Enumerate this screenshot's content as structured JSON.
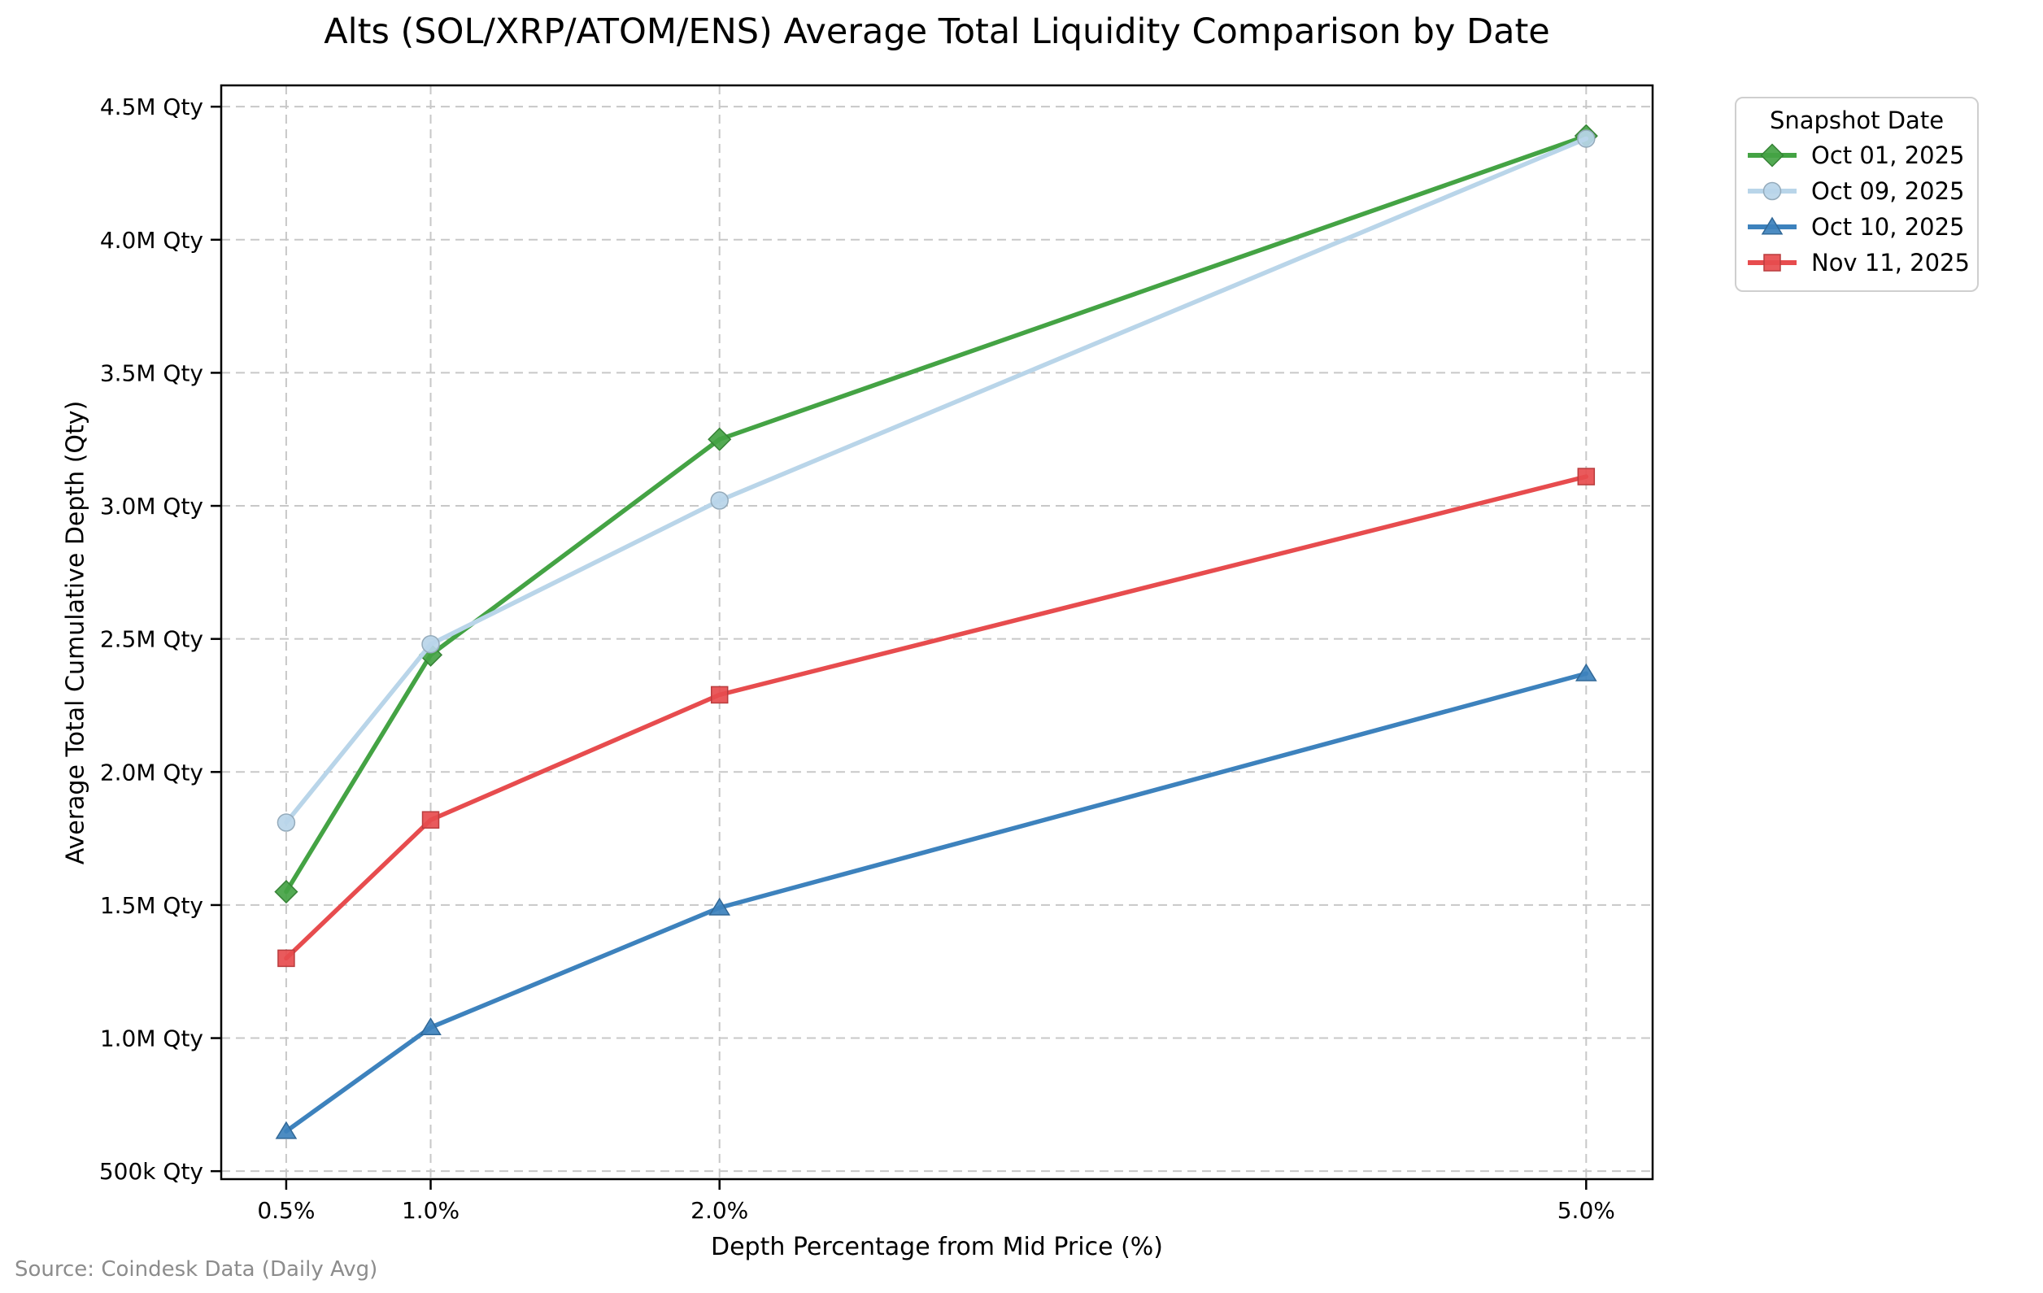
{
  "page": {
    "source_note": "Source: Coindesk Data (Daily Avg)"
  },
  "chart_data": {
    "type": "line",
    "title": "Alts (SOL/XRP/ATOM/ENS) Average Total Liquidity Comparison by Date",
    "xlabel": "Depth Percentage from Mid Price (%)",
    "ylabel": "Average Total Cumulative Depth (Qty)",
    "legend_title": "Snapshot Date",
    "legend_position": "upper right, outside plot area",
    "grid": true,
    "x": [
      0.5,
      1.0,
      2.0,
      5.0
    ],
    "x_tick_labels": [
      "0.5%",
      "1.0%",
      "2.0%",
      "5.0%"
    ],
    "xlim": [
      0.275,
      5.23
    ],
    "y_ticks": [
      500000,
      1000000,
      1500000,
      2000000,
      2500000,
      3000000,
      3500000,
      4000000,
      4500000
    ],
    "y_tick_labels": [
      "500k Qty",
      "1.0M Qty",
      "1.5M Qty",
      "2.0M Qty",
      "2.5M Qty",
      "3.0M Qty",
      "3.5M Qty",
      "4.0M Qty",
      "4.5M Qty"
    ],
    "ylim": [
      470000,
      4580000
    ],
    "series": [
      {
        "name": "Oct 01, 2025",
        "color": "#44a344",
        "marker": "diamond",
        "values": [
          1550000,
          2440000,
          3250000,
          4390000
        ]
      },
      {
        "name": "Oct 09, 2025",
        "color": "#b9d5e9",
        "marker": "circle",
        "values": [
          1810000,
          2480000,
          3020000,
          4380000
        ]
      },
      {
        "name": "Oct 10, 2025",
        "color": "#3d82bd",
        "marker": "triangle",
        "values": [
          650000,
          1040000,
          1490000,
          2370000
        ]
      },
      {
        "name": "Nov 11, 2025",
        "color": "#e74c4e",
        "marker": "square",
        "values": [
          1300000,
          1820000,
          2290000,
          3110000
        ]
      }
    ],
    "style": {
      "grid_color": "#c8c8c8",
      "spine_color": "#000000",
      "background": "#ffffff"
    }
  }
}
